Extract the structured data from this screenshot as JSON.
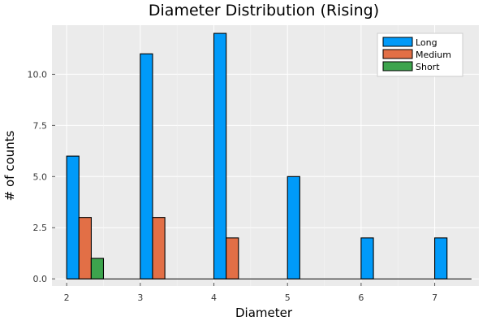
{
  "chart_data": {
    "type": "bar",
    "title": "Diameter Distribution (Rising)",
    "xlabel": "Diameter",
    "ylabel": "# of counts",
    "xlim": [
      1.8,
      7.6
    ],
    "ylim": [
      -0.35,
      12.4
    ],
    "xticks": [
      2,
      3,
      4,
      5,
      6,
      7
    ],
    "xtick_labels": [
      "2",
      "3",
      "4",
      "5",
      "6",
      "7"
    ],
    "yticks": [
      0,
      2.5,
      5,
      7.5,
      10
    ],
    "ytick_labels": [
      "0.0",
      "2.5",
      "5.0",
      "7.5",
      "10.0"
    ],
    "bin_edges": [
      2,
      2.5,
      3,
      3.5,
      4,
      4.5,
      5,
      5.5,
      6,
      6.5,
      7,
      7.5
    ],
    "bar_width": 0.167,
    "grid": true,
    "legend_position": "top-right",
    "series": [
      {
        "name": "Long",
        "color": "#009af9",
        "offset": 0.0,
        "values": [
          6,
          0,
          11,
          0,
          12,
          0,
          5,
          0,
          2,
          0,
          2
        ]
      },
      {
        "name": "Medium",
        "color": "#e26f46",
        "offset": 0.167,
        "values": [
          3,
          0,
          3,
          0,
          2,
          0,
          0,
          0,
          0,
          0,
          0
        ]
      },
      {
        "name": "Short",
        "color": "#3da44d",
        "offset": 0.333,
        "values": [
          1,
          0,
          0,
          0,
          0,
          0,
          0,
          0,
          0,
          0,
          0
        ]
      }
    ]
  }
}
